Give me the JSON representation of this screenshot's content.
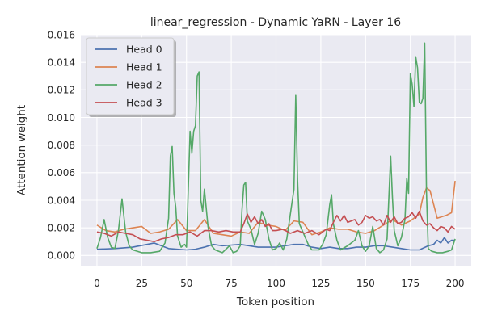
{
  "chart_data": {
    "type": "line",
    "title": "linear_regression - Dynamic YaRN - Layer 16",
    "xlabel": "Token position",
    "ylabel": "Attention weight",
    "xlim": [
      -9,
      209
    ],
    "ylim": [
      -0.0008,
      0.016
    ],
    "xticks": [
      0,
      25,
      50,
      75,
      100,
      125,
      150,
      175,
      200
    ],
    "yticks": [
      0.0,
      0.002,
      0.004,
      0.006,
      0.008,
      0.01,
      0.012,
      0.014,
      0.016
    ],
    "ytick_labels": [
      "0.000",
      "0.002",
      "0.004",
      "0.006",
      "0.008",
      "0.010",
      "0.012",
      "0.014",
      "0.016"
    ],
    "grid": true,
    "legend_position": "top-left",
    "series": [
      {
        "name": "Head 0",
        "color": "#4c72b0",
        "points": [
          [
            0,
            0.00045
          ],
          [
            10,
            0.0005
          ],
          [
            20,
            0.0006
          ],
          [
            28,
            0.0008
          ],
          [
            32,
            0.0009
          ],
          [
            40,
            0.0005
          ],
          [
            50,
            0.0004
          ],
          [
            55,
            0.00045
          ],
          [
            60,
            0.0006
          ],
          [
            65,
            0.0008
          ],
          [
            70,
            0.0007
          ],
          [
            80,
            0.0008
          ],
          [
            90,
            0.0006
          ],
          [
            100,
            0.0006
          ],
          [
            105,
            0.0007
          ],
          [
            110,
            0.0008
          ],
          [
            115,
            0.0008
          ],
          [
            120,
            0.0006
          ],
          [
            125,
            0.0005
          ],
          [
            130,
            0.0006
          ],
          [
            135,
            0.0005
          ],
          [
            140,
            0.0005
          ],
          [
            145,
            0.0006
          ],
          [
            150,
            0.0006
          ],
          [
            155,
            0.0007
          ],
          [
            160,
            0.0007
          ],
          [
            165,
            0.0006
          ],
          [
            170,
            0.0005
          ],
          [
            175,
            0.0004
          ],
          [
            180,
            0.0004
          ],
          [
            185,
            0.0007
          ],
          [
            188,
            0.0008
          ],
          [
            190,
            0.0011
          ],
          [
            192,
            0.0009
          ],
          [
            194,
            0.0013
          ],
          [
            196,
            0.0009
          ],
          [
            198,
            0.0011
          ],
          [
            200,
            0.0011
          ]
        ]
      },
      {
        "name": "Head 1",
        "color": "#dd8452",
        "points": [
          [
            0,
            0.0022
          ],
          [
            5,
            0.0018
          ],
          [
            10,
            0.0017
          ],
          [
            15,
            0.0019
          ],
          [
            20,
            0.002
          ],
          [
            25,
            0.0021
          ],
          [
            30,
            0.0016
          ],
          [
            35,
            0.0017
          ],
          [
            40,
            0.0019
          ],
          [
            45,
            0.0026
          ],
          [
            50,
            0.0018
          ],
          [
            55,
            0.0018
          ],
          [
            60,
            0.0026
          ],
          [
            65,
            0.0016
          ],
          [
            70,
            0.0015
          ],
          [
            75,
            0.0014
          ],
          [
            80,
            0.0017
          ],
          [
            85,
            0.0016
          ],
          [
            90,
            0.0024
          ],
          [
            95,
            0.0022
          ],
          [
            100,
            0.0021
          ],
          [
            105,
            0.0018
          ],
          [
            110,
            0.0025
          ],
          [
            115,
            0.0024
          ],
          [
            120,
            0.0015
          ],
          [
            125,
            0.0017
          ],
          [
            130,
            0.002
          ],
          [
            135,
            0.0019
          ],
          [
            140,
            0.0019
          ],
          [
            145,
            0.0017
          ],
          [
            150,
            0.0016
          ],
          [
            155,
            0.0018
          ],
          [
            160,
            0.0022
          ],
          [
            165,
            0.0026
          ],
          [
            170,
            0.0022
          ],
          [
            175,
            0.0025
          ],
          [
            180,
            0.003
          ],
          [
            182,
            0.0042
          ],
          [
            184,
            0.0049
          ],
          [
            186,
            0.0047
          ],
          [
            188,
            0.0037
          ],
          [
            190,
            0.0027
          ],
          [
            195,
            0.0029
          ],
          [
            198,
            0.0031
          ],
          [
            200,
            0.0054
          ]
        ]
      },
      {
        "name": "Head 2",
        "color": "#55a868",
        "points": [
          [
            0,
            0.0005
          ],
          [
            2,
            0.0013
          ],
          [
            4,
            0.0026
          ],
          [
            6,
            0.0013
          ],
          [
            8,
            0.0006
          ],
          [
            10,
            0.0005
          ],
          [
            12,
            0.0018
          ],
          [
            14,
            0.0041
          ],
          [
            16,
            0.0017
          ],
          [
            18,
            0.0007
          ],
          [
            20,
            0.0004
          ],
          [
            25,
            0.0002
          ],
          [
            30,
            0.0002
          ],
          [
            35,
            0.0003
          ],
          [
            38,
            0.0009
          ],
          [
            40,
            0.0027
          ],
          [
            41,
            0.0072
          ],
          [
            42,
            0.0079
          ],
          [
            43,
            0.0045
          ],
          [
            44,
            0.0035
          ],
          [
            45,
            0.0014
          ],
          [
            47,
            0.0006
          ],
          [
            49,
            0.0008
          ],
          [
            50,
            0.0006
          ],
          [
            52,
            0.009
          ],
          [
            53,
            0.0074
          ],
          [
            54,
            0.009
          ],
          [
            55,
            0.0094
          ],
          [
            56,
            0.013
          ],
          [
            57,
            0.0133
          ],
          [
            58,
            0.004
          ],
          [
            59,
            0.0032
          ],
          [
            60,
            0.0048
          ],
          [
            62,
            0.0021
          ],
          [
            64,
            0.0007
          ],
          [
            66,
            0.0004
          ],
          [
            70,
            0.0002
          ],
          [
            74,
            0.0007
          ],
          [
            76,
            0.0002
          ],
          [
            78,
            0.0003
          ],
          [
            80,
            0.0007
          ],
          [
            81,
            0.0033
          ],
          [
            82,
            0.0051
          ],
          [
            83,
            0.0053
          ],
          [
            84,
            0.0025
          ],
          [
            86,
            0.0019
          ],
          [
            88,
            0.0008
          ],
          [
            90,
            0.0016
          ],
          [
            92,
            0.0032
          ],
          [
            94,
            0.0026
          ],
          [
            96,
            0.0012
          ],
          [
            98,
            0.0004
          ],
          [
            100,
            0.0005
          ],
          [
            102,
            0.0009
          ],
          [
            104,
            0.0004
          ],
          [
            106,
            0.0012
          ],
          [
            108,
            0.003
          ],
          [
            110,
            0.0048
          ],
          [
            111,
            0.0116
          ],
          [
            112,
            0.0055
          ],
          [
            113,
            0.0023
          ],
          [
            115,
            0.0017
          ],
          [
            118,
            0.0008
          ],
          [
            120,
            0.0004
          ],
          [
            124,
            0.0004
          ],
          [
            126,
            0.0008
          ],
          [
            128,
            0.0015
          ],
          [
            130,
            0.0037
          ],
          [
            131,
            0.0044
          ],
          [
            132,
            0.0023
          ],
          [
            134,
            0.0011
          ],
          [
            136,
            0.0004
          ],
          [
            140,
            0.0007
          ],
          [
            144,
            0.0011
          ],
          [
            146,
            0.0018
          ],
          [
            148,
            0.0007
          ],
          [
            150,
            0.0003
          ],
          [
            152,
            0.0007
          ],
          [
            154,
            0.0021
          ],
          [
            156,
            0.0005
          ],
          [
            158,
            0.0002
          ],
          [
            160,
            0.0004
          ],
          [
            162,
            0.0012
          ],
          [
            164,
            0.0072
          ],
          [
            165,
            0.0042
          ],
          [
            166,
            0.0018
          ],
          [
            168,
            0.0007
          ],
          [
            170,
            0.0013
          ],
          [
            172,
            0.0026
          ],
          [
            173,
            0.0056
          ],
          [
            174,
            0.0045
          ],
          [
            175,
            0.0132
          ],
          [
            176,
            0.0124
          ],
          [
            177,
            0.0108
          ],
          [
            178,
            0.0144
          ],
          [
            179,
            0.0136
          ],
          [
            180,
            0.0111
          ],
          [
            181,
            0.011
          ],
          [
            182,
            0.0114
          ],
          [
            183,
            0.0154
          ],
          [
            184,
            0.0046
          ],
          [
            185,
            0.0005
          ],
          [
            187,
            0.0003
          ],
          [
            190,
            0.0002
          ],
          [
            193,
            0.0002
          ],
          [
            196,
            0.0003
          ],
          [
            198,
            0.0004
          ],
          [
            200,
            0.0012
          ]
        ]
      },
      {
        "name": "Head 3",
        "color": "#c44e52",
        "points": [
          [
            0,
            0.0017
          ],
          [
            4,
            0.0016
          ],
          [
            8,
            0.0014
          ],
          [
            12,
            0.0017
          ],
          [
            16,
            0.0016
          ],
          [
            20,
            0.0015
          ],
          [
            24,
            0.0012
          ],
          [
            28,
            0.0011
          ],
          [
            32,
            0.001
          ],
          [
            36,
            0.0012
          ],
          [
            40,
            0.0013
          ],
          [
            44,
            0.0015
          ],
          [
            48,
            0.0015
          ],
          [
            52,
            0.0017
          ],
          [
            56,
            0.0014
          ],
          [
            60,
            0.0018
          ],
          [
            64,
            0.0018
          ],
          [
            68,
            0.0017
          ],
          [
            72,
            0.0018
          ],
          [
            76,
            0.0017
          ],
          [
            80,
            0.0017
          ],
          [
            82,
            0.0023
          ],
          [
            84,
            0.003
          ],
          [
            86,
            0.0024
          ],
          [
            88,
            0.0028
          ],
          [
            90,
            0.0023
          ],
          [
            92,
            0.0026
          ],
          [
            94,
            0.0021
          ],
          [
            96,
            0.0023
          ],
          [
            98,
            0.0018
          ],
          [
            100,
            0.0018
          ],
          [
            104,
            0.0019
          ],
          [
            108,
            0.0016
          ],
          [
            112,
            0.0018
          ],
          [
            116,
            0.0016
          ],
          [
            120,
            0.0018
          ],
          [
            124,
            0.0015
          ],
          [
            128,
            0.0019
          ],
          [
            130,
            0.0018
          ],
          [
            132,
            0.0024
          ],
          [
            134,
            0.0029
          ],
          [
            136,
            0.0025
          ],
          [
            138,
            0.0029
          ],
          [
            140,
            0.0024
          ],
          [
            142,
            0.0025
          ],
          [
            144,
            0.0026
          ],
          [
            146,
            0.0022
          ],
          [
            148,
            0.0024
          ],
          [
            150,
            0.0029
          ],
          [
            152,
            0.0027
          ],
          [
            154,
            0.0028
          ],
          [
            156,
            0.0025
          ],
          [
            158,
            0.0026
          ],
          [
            160,
            0.0022
          ],
          [
            162,
            0.0029
          ],
          [
            164,
            0.0024
          ],
          [
            166,
            0.0028
          ],
          [
            168,
            0.0023
          ],
          [
            170,
            0.0024
          ],
          [
            172,
            0.0027
          ],
          [
            174,
            0.0028
          ],
          [
            176,
            0.0031
          ],
          [
            178,
            0.0027
          ],
          [
            180,
            0.0032
          ],
          [
            182,
            0.0025
          ],
          [
            184,
            0.0022
          ],
          [
            186,
            0.0023
          ],
          [
            188,
            0.002
          ],
          [
            190,
            0.0018
          ],
          [
            192,
            0.0021
          ],
          [
            194,
            0.002
          ],
          [
            196,
            0.0017
          ],
          [
            198,
            0.0021
          ],
          [
            200,
            0.0019
          ]
        ]
      }
    ]
  }
}
